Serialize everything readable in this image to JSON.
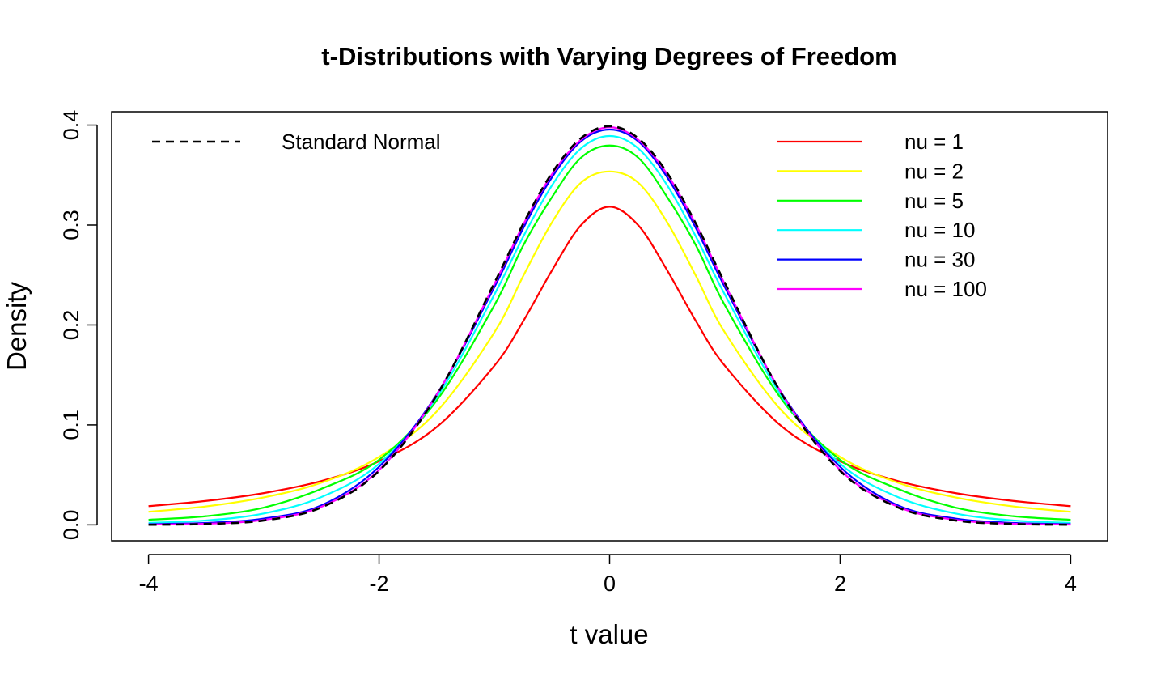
{
  "chart_data": {
    "type": "line",
    "title": "t-Distributions with Varying Degrees of Freedom",
    "xlabel": "t value",
    "ylabel": "Density",
    "xlim": [
      -4.32,
      4.32
    ],
    "ylim": [
      -0.0159,
      0.4134
    ],
    "x_ticks": [
      -4,
      -2,
      0,
      2,
      4
    ],
    "y_ticks": [
      0.0,
      0.1,
      0.2,
      0.3,
      0.4
    ],
    "x_tick_labels": [
      "-4",
      "-2",
      "0",
      "2",
      "4"
    ],
    "y_tick_labels": [
      "0.0",
      "0.1",
      "0.2",
      "0.3",
      "0.4"
    ],
    "grid": false,
    "x": [
      -4,
      -3.5,
      -3,
      -2.5,
      -2,
      -1.5,
      -1,
      -0.75,
      -0.5,
      -0.25,
      0,
      0.25,
      0.5,
      0.75,
      1,
      1.5,
      2,
      2.5,
      3,
      3.5,
      4
    ],
    "series": [
      {
        "name": "nu = 1",
        "color": "#ff0000",
        "style": "solid",
        "values": [
          0.0187,
          0.024,
          0.0318,
          0.0439,
          0.0637,
          0.0979,
          0.1592,
          0.2037,
          0.2546,
          0.2996,
          0.3183,
          0.2996,
          0.2546,
          0.2037,
          0.1592,
          0.0979,
          0.0637,
          0.0439,
          0.0318,
          0.024,
          0.0187
        ]
      },
      {
        "name": "nu = 2",
        "color": "#ffff00",
        "style": "solid",
        "values": [
          0.0131,
          0.0185,
          0.0275,
          0.0422,
          0.068,
          0.1134,
          0.1925,
          0.2489,
          0.3027,
          0.3422,
          0.3536,
          0.3422,
          0.3027,
          0.2489,
          0.1925,
          0.1134,
          0.068,
          0.0422,
          0.0275,
          0.0185,
          0.0131
        ]
      },
      {
        "name": "nu = 5",
        "color": "#00ff00",
        "style": "solid",
        "values": [
          0.0051,
          0.0087,
          0.0173,
          0.0361,
          0.0651,
          0.1245,
          0.2197,
          0.2794,
          0.3279,
          0.3672,
          0.3796,
          0.3672,
          0.3279,
          0.2794,
          0.2197,
          0.1245,
          0.0651,
          0.0361,
          0.0173,
          0.0087,
          0.0051
        ]
      },
      {
        "name": "nu = 10",
        "color": "#00ffff",
        "style": "solid",
        "values": [
          0.002,
          0.0044,
          0.0114,
          0.0278,
          0.0611,
          0.1274,
          0.2304,
          0.2882,
          0.3397,
          0.3765,
          0.3891,
          0.3765,
          0.3397,
          0.2882,
          0.2304,
          0.1274,
          0.0611,
          0.0278,
          0.0114,
          0.0044,
          0.002
        ]
      },
      {
        "name": "nu = 30",
        "color": "#0000ff",
        "style": "solid",
        "values": [
          0.0007,
          0.0019,
          0.0063,
          0.0195,
          0.0581,
          0.1305,
          0.2378,
          0.2967,
          0.3478,
          0.3836,
          0.3956,
          0.3836,
          0.3478,
          0.2967,
          0.2378,
          0.1305,
          0.0581,
          0.0195,
          0.0063,
          0.0019,
          0.0007
        ]
      },
      {
        "name": "nu = 100",
        "color": "#ff00ff",
        "style": "solid",
        "values": [
          0.0003,
          0.0011,
          0.005,
          0.0181,
          0.0549,
          0.1301,
          0.2408,
          0.3002,
          0.3508,
          0.3852,
          0.3979,
          0.3852,
          0.3508,
          0.3002,
          0.2408,
          0.1301,
          0.0549,
          0.0181,
          0.005,
          0.0011,
          0.0003
        ]
      },
      {
        "name": "Standard Normal",
        "color": "#000000",
        "style": "dashed",
        "values": [
          0.0001,
          0.0009,
          0.0044,
          0.0175,
          0.054,
          0.1295,
          0.242,
          0.3011,
          0.3521,
          0.3867,
          0.3989,
          0.3867,
          0.3521,
          0.3011,
          0.242,
          0.1295,
          0.054,
          0.0175,
          0.0044,
          0.0009,
          0.0001
        ]
      }
    ],
    "legends": [
      {
        "placement": "top-left",
        "entries": [
          "Standard Normal"
        ]
      },
      {
        "placement": "top-right",
        "entries": [
          "nu = 1",
          "nu = 2",
          "nu = 5",
          "nu = 10",
          "nu = 30",
          "nu = 100"
        ]
      }
    ]
  }
}
